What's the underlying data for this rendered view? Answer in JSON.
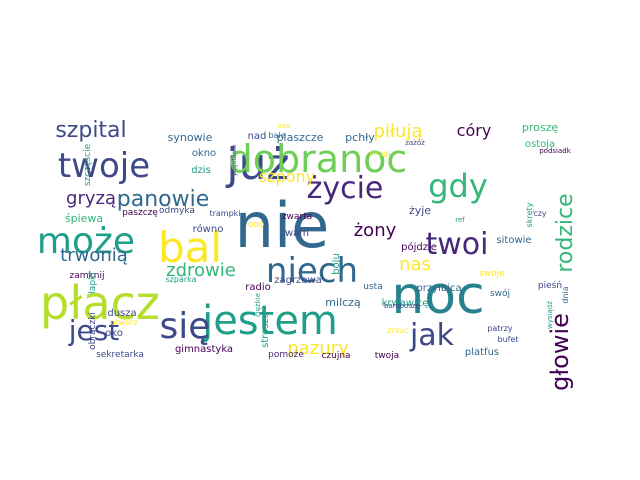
{
  "palette": {
    "dark_purple": "#440154",
    "purple": "#482878",
    "indigo": "#3e4989",
    "blue": "#31688e",
    "teal_blue": "#26828e",
    "teal": "#1f9e89",
    "green": "#35b779",
    "light_green": "#6ece58",
    "yellow_green": "#b5de2b",
    "yellow": "#fde725"
  },
  "words": [
    {
      "text": "nie",
      "color": "blue"
    },
    {
      "text": "noc",
      "color": "teal_blue"
    },
    {
      "text": "płacz",
      "color": "yellow_green"
    },
    {
      "text": "już",
      "color": "indigo"
    },
    {
      "text": "dobranoc",
      "color": "light_green"
    },
    {
      "text": "bal",
      "color": "yellow"
    },
    {
      "text": "jestem",
      "color": "teal"
    },
    {
      "text": "twoje",
      "color": "indigo"
    },
    {
      "text": "może",
      "color": "teal"
    },
    {
      "text": "się",
      "color": "indigo"
    },
    {
      "text": "niech",
      "color": "blue"
    },
    {
      "text": "życie",
      "color": "purple"
    },
    {
      "text": "gdy",
      "color": "green"
    },
    {
      "text": "twoi",
      "color": "purple"
    },
    {
      "text": "jak",
      "color": "indigo"
    },
    {
      "text": "jest",
      "color": "indigo"
    },
    {
      "text": "głowie",
      "color": "dark_purple"
    },
    {
      "text": "rodzice",
      "color": "green"
    },
    {
      "text": "panowie",
      "color": "blue"
    },
    {
      "text": "szpital",
      "color": "indigo"
    },
    {
      "text": "zdrowie",
      "color": "green"
    },
    {
      "text": "nas",
      "color": "yellow"
    },
    {
      "text": "gryzą",
      "color": "purple"
    },
    {
      "text": "trwonią",
      "color": "blue"
    },
    {
      "text": "pazury",
      "color": "yellow"
    },
    {
      "text": "żony",
      "color": "dark_purple"
    },
    {
      "text": "piłują",
      "color": "yellow"
    },
    {
      "text": "córy",
      "color": "dark_purple"
    },
    {
      "text": "szpony",
      "color": "yellow"
    },
    {
      "text": "synowie",
      "color": "blue"
    },
    {
      "text": "plaszcze",
      "color": "blue"
    },
    {
      "text": "pchły",
      "color": "blue"
    },
    {
      "text": "proszę",
      "color": "green"
    },
    {
      "text": "ostoja",
      "color": "green"
    },
    {
      "text": "nad",
      "color": "indigo"
    },
    {
      "text": "bale",
      "color": "blue"
    },
    {
      "text": "drugi",
      "color": "yellow"
    },
    {
      "text": "aaa",
      "color": "yellow"
    },
    {
      "text": "okno",
      "color": "blue"
    },
    {
      "text": "dzis",
      "color": "teal"
    },
    {
      "text": "śpiewa",
      "color": "green"
    },
    {
      "text": "paszczę",
      "color": "dark_purple"
    },
    {
      "text": "odmyka",
      "color": "indigo"
    },
    {
      "text": "trampki",
      "color": "indigo"
    },
    {
      "text": "zwarta",
      "color": "dark_purple"
    },
    {
      "text": "ooo",
      "color": "yellow"
    },
    {
      "text": "wam",
      "color": "indigo"
    },
    {
      "text": "żyje",
      "color": "indigo"
    },
    {
      "text": "równo",
      "color": "indigo"
    },
    {
      "text": "boju",
      "color": "teal"
    },
    {
      "text": "zagrzewa",
      "color": "indigo"
    },
    {
      "text": "pójdzie",
      "color": "dark_purple"
    },
    {
      "text": "sitowie",
      "color": "blue"
    },
    {
      "text": "zamknij",
      "color": "dark_purple"
    },
    {
      "text": "radio",
      "color": "dark_purple"
    },
    {
      "text": "szparka",
      "color": "teal"
    },
    {
      "text": "usta",
      "color": "blue"
    },
    {
      "text": "przyłbica",
      "color": "blue"
    },
    {
      "text": "swoje",
      "color": "yellow"
    },
    {
      "text": "pieśń",
      "color": "indigo"
    },
    {
      "text": "swój",
      "color": "blue"
    },
    {
      "text": "milczą",
      "color": "blue"
    },
    {
      "text": "krwawicę",
      "color": "teal"
    },
    {
      "text": "dusza",
      "color": "indigo"
    },
    {
      "text": "oko",
      "color": "indigo"
    },
    {
      "text": "gimnastyka",
      "color": "dark_purple"
    },
    {
      "text": "pomoże",
      "color": "purple"
    },
    {
      "text": "czujna",
      "color": "dark_purple"
    },
    {
      "text": "twoja",
      "color": "dark_purple"
    },
    {
      "text": "platfus",
      "color": "blue"
    },
    {
      "text": "sekretarka",
      "color": "indigo"
    },
    {
      "text": "patrzy",
      "color": "indigo"
    },
    {
      "text": "bufet",
      "color": "indigo"
    },
    {
      "text": "strosza",
      "color": "teal"
    },
    {
      "text": "obrączki",
      "color": "indigo"
    },
    {
      "text": "łapki",
      "color": "teal"
    },
    {
      "text": "szczęście",
      "color": "teal"
    },
    {
      "text": "skręty",
      "color": "teal"
    },
    {
      "text": "czy",
      "color": "indigo"
    },
    {
      "text": "dnia",
      "color": "blue"
    },
    {
      "text": "otworz",
      "color": "yellow"
    },
    {
      "text": "zrzuc",
      "color": "yellow"
    },
    {
      "text": "bambosze",
      "color": "indigo"
    },
    {
      "text": "ciężkie",
      "color": "teal"
    },
    {
      "text": "pogotowie",
      "color": "indigo"
    },
    {
      "text": "zażóż",
      "color": "indigo"
    },
    {
      "text": "ref",
      "color": "teal"
    },
    {
      "text": "podsiadk",
      "color": "dark_purple"
    },
    {
      "text": "wysiądź",
      "color": "teal"
    }
  ]
}
